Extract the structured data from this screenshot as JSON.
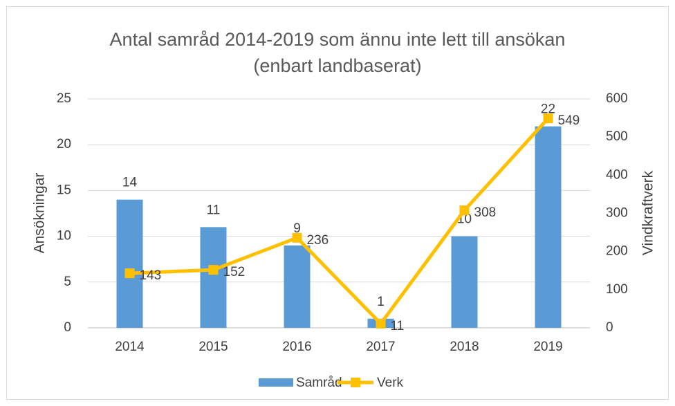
{
  "chart_data": {
    "type": "bar",
    "title": "Antal samråd 2014-2019 som ännu inte lett till ansökan (enbart landbaserat)",
    "categories": [
      "2014",
      "2015",
      "2016",
      "2017",
      "2018",
      "2019"
    ],
    "series": [
      {
        "name": "Samråd",
        "type": "bar",
        "color": "#5b9bd5",
        "values": [
          14,
          11,
          9,
          1,
          10,
          22
        ]
      },
      {
        "name": "Verk",
        "type": "line",
        "axis": "y2",
        "color": "#ffc000",
        "values": [
          143,
          152,
          236,
          11,
          308,
          549
        ]
      }
    ],
    "ylabel": "Ansökningar",
    "y2label": "Vindkraftverk",
    "ylim": [
      0,
      25
    ],
    "yticks": [
      0,
      5,
      10,
      15,
      20,
      25
    ],
    "y2lim": [
      0,
      600
    ],
    "y2ticks": [
      0,
      100,
      200,
      300,
      400,
      500,
      600
    ],
    "grid": true,
    "legend": "bottom"
  }
}
